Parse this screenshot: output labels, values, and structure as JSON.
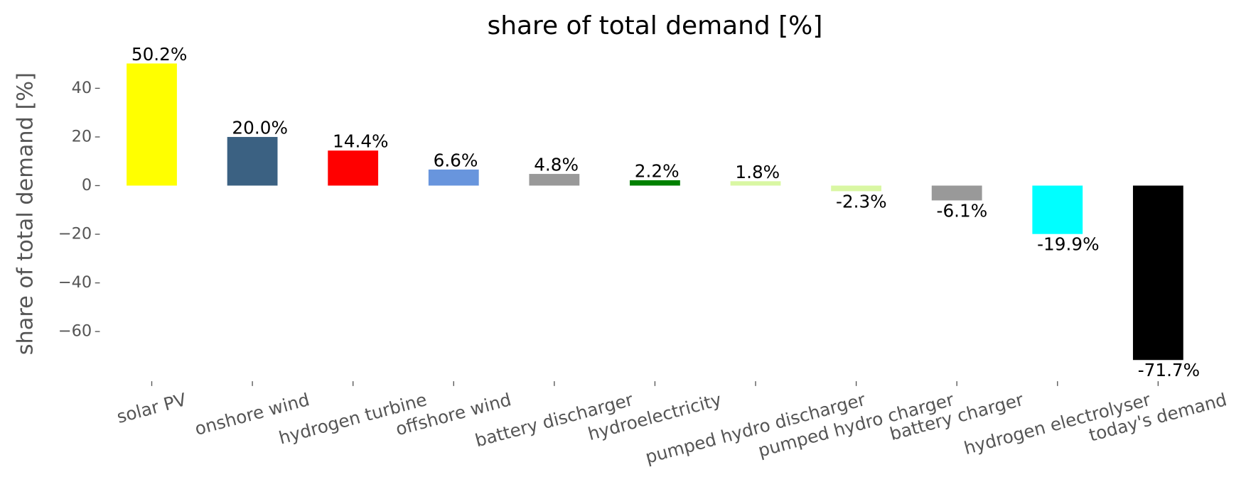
{
  "chart_data": {
    "type": "bar",
    "title": "share of total demand [%]",
    "y_label": "share of total demand [%]",
    "categories": [
      "solar PV",
      "onshore wind",
      "hydrogen turbine",
      "offshore wind",
      "battery discharger",
      "hydroelectricity",
      "pumped hydro discharger",
      "pumped hydro charger",
      "battery charger",
      "hydrogen electrolyser",
      "today's demand"
    ],
    "values": [
      50.2,
      20.0,
      14.4,
      6.6,
      4.8,
      2.2,
      1.8,
      -2.3,
      -6.1,
      -19.9,
      -71.7
    ],
    "value_labels": [
      "50.2%",
      "20.0%",
      "14.4%",
      "6.6%",
      "4.8%",
      "2.2%",
      "1.8%",
      "-2.3%",
      "-6.1%",
      "-19.9%",
      "-71.7%"
    ],
    "colors": [
      "#ffff00",
      "#3b6182",
      "#ff0000",
      "#6895dd",
      "#999999",
      "#008000",
      "#d9f7a3",
      "#d9f7a3",
      "#999999",
      "#00ffff",
      "#000000"
    ],
    "ylim": [
      -77.8,
      56.3
    ],
    "yticks": [
      {
        "value": -60,
        "label": "−60"
      },
      {
        "value": -40,
        "label": "−40"
      },
      {
        "value": -20,
        "label": "−20"
      },
      0,
      20,
      40
    ],
    "grid": false
  }
}
